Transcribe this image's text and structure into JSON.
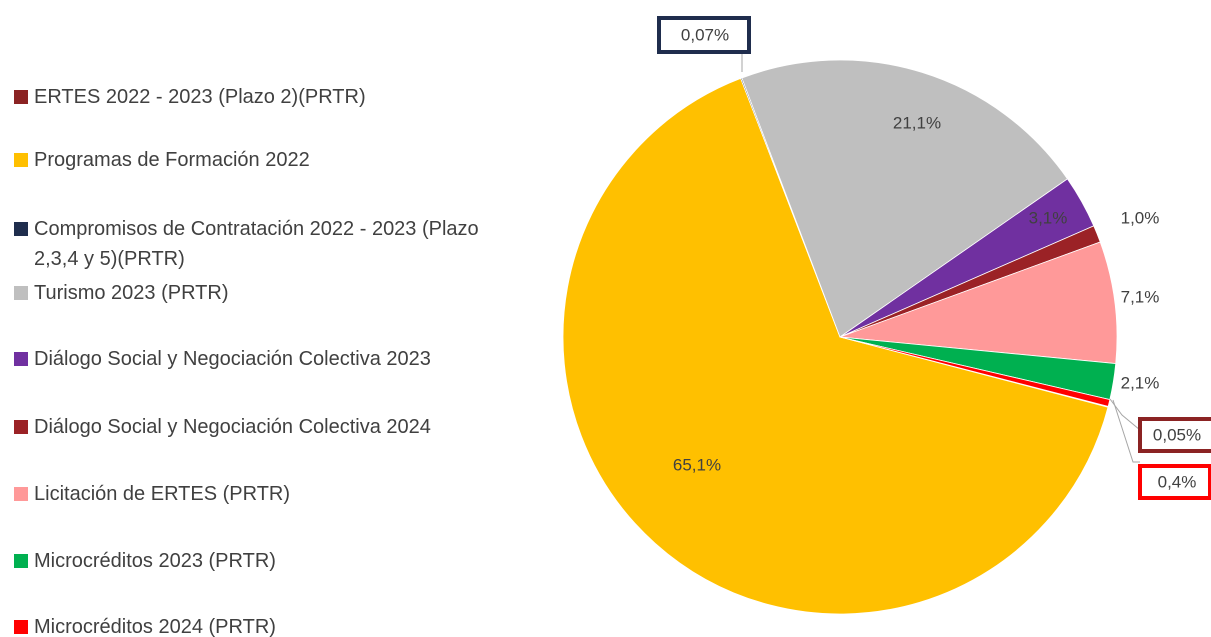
{
  "chart_data": {
    "type": "pie",
    "categories": [
      "ERTES 2022 - 2023 (Plazo 2)(PRTR)",
      "Programas de Formación 2022",
      "Compromisos de Contratación 2022 - 2023 (Plazo 2,3,4 y 5)(PRTR)",
      "Turismo 2023 (PRTR)",
      "Diálogo Social y Negociación Colectiva 2023",
      "Diálogo Social y Negociación Colectiva 2024",
      "Licitación de ERTES (PRTR)",
      "Microcréditos 2023 (PRTR)",
      "Microcréditos 2024 (PRTR)"
    ],
    "values": [
      0.05,
      65.1,
      0.07,
      21.1,
      3.1,
      1.0,
      7.1,
      2.1,
      0.4
    ],
    "value_labels": [
      "0,05%",
      "65,1%",
      "0,07%",
      "21,1%",
      "3,1%",
      "1,0%",
      "7,1%",
      "2,1%",
      "0,4%"
    ],
    "colors": [
      "#8b2323",
      "#ffc000",
      "#1f2d4d",
      "#bfbfbf",
      "#7030a0",
      "#9b2226",
      "#ff9999",
      "#00b050",
      "#ff0000"
    ],
    "legend": "left"
  }
}
